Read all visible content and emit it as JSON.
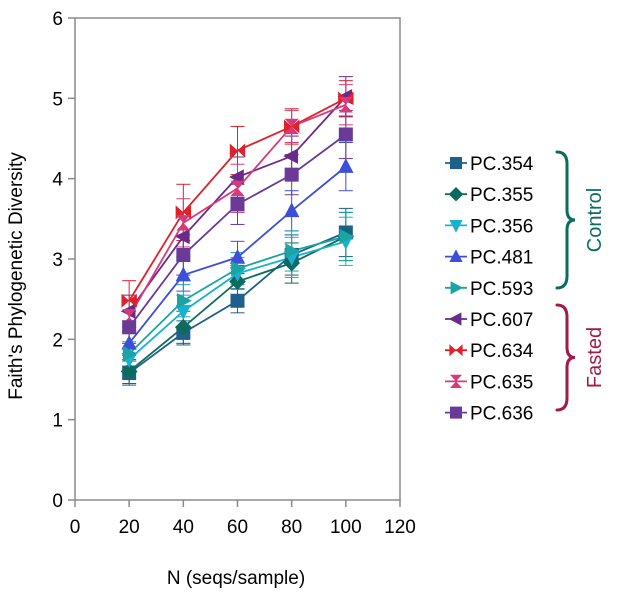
{
  "chart_data": {
    "type": "line",
    "title": "",
    "xlabel": "N  (seqs/sample)",
    "ylabel": "Faith's Phylogenetic Diversity",
    "xlim": [
      0,
      120
    ],
    "ylim": [
      0,
      6
    ],
    "xticks": [
      "0",
      "20",
      "40",
      "60",
      "80",
      "100",
      "120"
    ],
    "yticks": [
      "0",
      "1",
      "2",
      "3",
      "4",
      "5",
      "6"
    ],
    "x": [
      20,
      40,
      60,
      80,
      100
    ],
    "grid": false,
    "legend_position": "right",
    "series": [
      {
        "name": "PC.354",
        "marker": "square",
        "color": "#1f5f8b",
        "values": [
          1.58,
          2.08,
          2.48,
          3.05,
          3.33
        ],
        "err": [
          0.15,
          0.15,
          0.15,
          0.25,
          0.3
        ]
      },
      {
        "name": "PC.355",
        "marker": "diamond",
        "color": "#0d6b5e",
        "values": [
          1.6,
          2.15,
          2.72,
          2.95,
          3.28
        ],
        "err": [
          0.15,
          0.2,
          0.2,
          0.25,
          0.3
        ]
      },
      {
        "name": "PC.356",
        "marker": "triangle-down",
        "color": "#1ab0cf",
        "values": [
          1.75,
          2.35,
          2.82,
          3.02,
          3.22
        ],
        "err": [
          0.15,
          0.2,
          0.2,
          0.25,
          0.3
        ]
      },
      {
        "name": "PC.481",
        "marker": "triangle-up",
        "color": "#3b4fd8",
        "values": [
          1.95,
          2.8,
          3.02,
          3.6,
          4.15
        ],
        "err": [
          0.15,
          0.2,
          0.2,
          0.25,
          0.3
        ]
      },
      {
        "name": "PC.593",
        "marker": "triangle-right",
        "color": "#1aa4a4",
        "values": [
          1.82,
          2.48,
          2.88,
          3.1,
          3.28
        ],
        "err": [
          0.15,
          0.2,
          0.2,
          0.25,
          0.3
        ]
      },
      {
        "name": "PC.607",
        "marker": "triangle-left",
        "color": "#6a2a8a",
        "values": [
          2.35,
          3.28,
          4.02,
          4.28,
          5.02
        ],
        "err": [
          0.2,
          0.25,
          0.25,
          0.25,
          0.25
        ]
      },
      {
        "name": "PC.634",
        "marker": "bowtie",
        "color": "#e0202a",
        "values": [
          2.48,
          3.58,
          4.35,
          4.65,
          5.0
        ],
        "err": [
          0.25,
          0.35,
          0.3,
          0.22,
          0.22
        ]
      },
      {
        "name": "PC.635",
        "marker": "hourglass",
        "color": "#d63a7a",
        "values": [
          2.28,
          3.45,
          3.88,
          4.65,
          4.92
        ],
        "err": [
          0.2,
          0.3,
          0.3,
          0.2,
          0.25
        ]
      },
      {
        "name": "PC.636",
        "marker": "square",
        "color": "#6a3a96",
        "values": [
          2.15,
          3.05,
          3.68,
          4.05,
          4.55
        ],
        "err": [
          0.2,
          0.25,
          0.25,
          0.25,
          0.3
        ]
      }
    ],
    "groups": [
      {
        "label": "Control",
        "members": [
          "PC.354",
          "PC.355",
          "PC.356",
          "PC.481",
          "PC.593"
        ],
        "color": "#0d6b5e"
      },
      {
        "label": "Fasted",
        "members": [
          "PC.607",
          "PC.634",
          "PC.635",
          "PC.636"
        ],
        "color": "#a01a4a"
      }
    ]
  }
}
